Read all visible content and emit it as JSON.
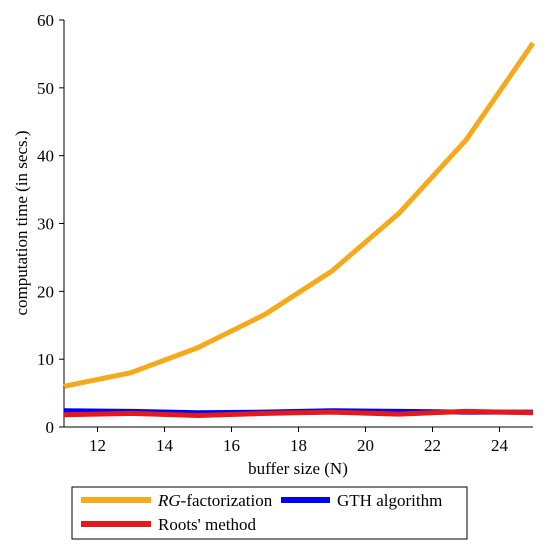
{
  "chart_data": {
    "type": "line",
    "title": "",
    "xlabel": "buffer size (N)",
    "ylabel": "computation time (in secs.)",
    "xlim": [
      11,
      25
    ],
    "ylim": [
      0,
      60
    ],
    "x_ticks": [
      "12",
      "14",
      "16",
      "18",
      "20",
      "22",
      "24"
    ],
    "y_ticks": [
      "0",
      "10",
      "20",
      "30",
      "40",
      "50",
      "60"
    ],
    "grid": false,
    "legend_position": "bottom",
    "x": [
      11,
      13,
      15,
      17,
      19,
      21,
      23,
      25
    ],
    "series": [
      {
        "name_italic": "RG",
        "name_rest": "-factorization",
        "name": "RG-factorization",
        "color": "#f5a91c",
        "values": [
          6.0,
          8.0,
          11.7,
          16.6,
          23.0,
          31.5,
          42.3,
          56.6
        ]
      },
      {
        "name": "GTH algorithm",
        "color": "#0000ff",
        "values": [
          2.4,
          2.3,
          2.1,
          2.2,
          2.4,
          2.3,
          2.2,
          2.2
        ]
      },
      {
        "name": "Roots' method",
        "color": "#e31a1c",
        "values": [
          1.8,
          2.0,
          1.7,
          2.0,
          2.2,
          1.9,
          2.3,
          2.1
        ]
      }
    ]
  }
}
